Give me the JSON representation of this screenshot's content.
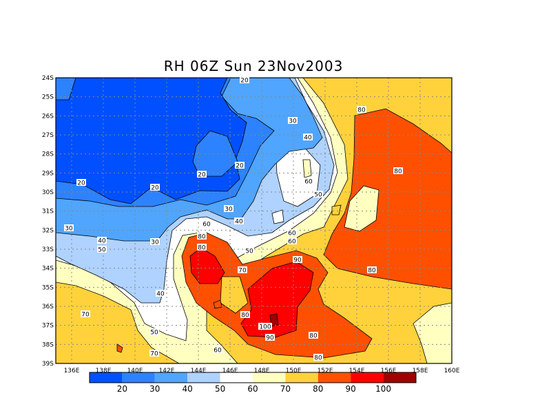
{
  "title": "RH 06Z Sun 23Nov2003",
  "chart_data": {
    "type": "heatmap",
    "variable": "RH",
    "title": "RH 06Z Sun 23Nov2003",
    "lon_range": [
      135,
      160
    ],
    "lat_range": [
      -39,
      -24
    ],
    "x_ticks": [
      "136E",
      "138E",
      "140E",
      "142E",
      "144E",
      "146E",
      "148E",
      "150E",
      "152E",
      "154E",
      "156E",
      "158E",
      "160E"
    ],
    "y_ticks": [
      "24S",
      "25S",
      "26S",
      "27S",
      "28S",
      "29S",
      "30S",
      "31S",
      "32S",
      "33S",
      "34S",
      "35S",
      "36S",
      "37S",
      "38S",
      "39S"
    ],
    "grid": true,
    "colorbar": {
      "labels": [
        "20",
        "30",
        "40",
        "50",
        "60",
        "70",
        "80",
        "90",
        "100"
      ],
      "colors": [
        "#0050ff",
        "#2d82ff",
        "#50a5ff",
        "#afd2ff",
        "#ffffff",
        "#ffffc0",
        "#ffd23c",
        "#ff5000",
        "#ff0000",
        "#a00000"
      ]
    },
    "contour_labels": [
      "20",
      "20",
      "20",
      "20",
      "20",
      "30",
      "30",
      "30",
      "30",
      "40",
      "40",
      "40",
      "40",
      "50",
      "50",
      "50",
      "50",
      "60",
      "60",
      "60",
      "60",
      "60",
      "70",
      "70",
      "70",
      "80",
      "80",
      "80",
      "80",
      "80",
      "80",
      "80",
      "80",
      "90",
      "90",
      "100"
    ]
  }
}
